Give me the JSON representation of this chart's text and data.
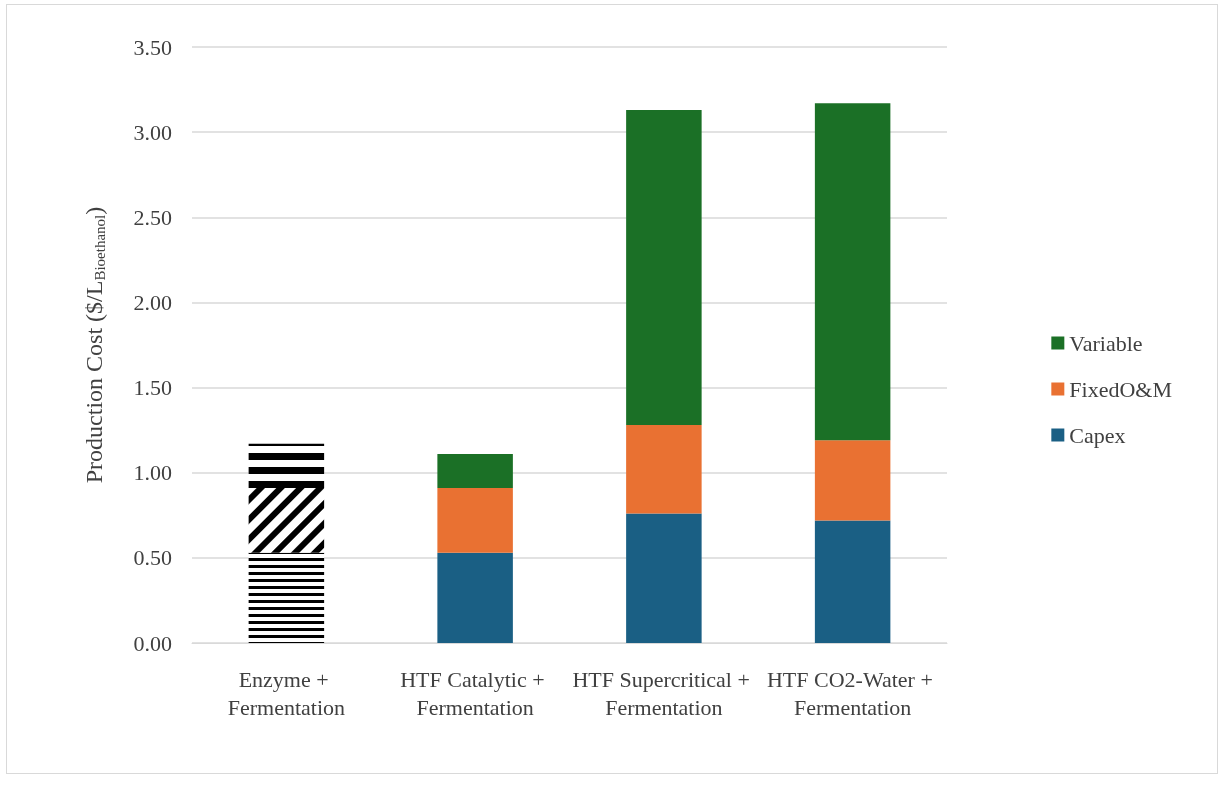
{
  "chart_data": {
    "type": "bar",
    "stacked": true,
    "ylabel": "Production Cost ($/L$_{Bioethanol}$)",
    "categories": [
      "Enzyme + Fermentation",
      "HTF Catalytic + Fermentation",
      "HTF Supercritical + Fermentation",
      "HTF CO2-Water + Fermentation"
    ],
    "series": [
      {
        "name": "Capex",
        "color": "#1a5f84",
        "colors": [
          "#000000",
          "#1a5f84",
          "#1a5f84",
          "#1a5f84"
        ],
        "values": [
          0.53,
          0.53,
          0.76,
          0.72
        ]
      },
      {
        "name": "FixedO&M",
        "color": "#e97132",
        "colors": [
          "#000000",
          "#e97132",
          "#e97132",
          "#e97132"
        ],
        "values": [
          0.38,
          0.38,
          0.52,
          0.47
        ]
      },
      {
        "name": "Variable",
        "color": "#1b7026",
        "colors": [
          "#000000",
          "#1b7026",
          "#1b7026",
          "#1b7026"
        ],
        "values": [
          0.26,
          0.2,
          1.85,
          1.98
        ]
      }
    ],
    "ylim": [
      0,
      3.5
    ],
    "yticks": [
      {
        "value": 0,
        "label": "0.00"
      },
      {
        "value": 0.5,
        "label": "0.50"
      },
      {
        "value": 1,
        "label": "1.00"
      },
      {
        "value": 1.5,
        "label": "1.50"
      },
      {
        "value": 2,
        "label": "2.00"
      },
      {
        "value": 2.5,
        "label": "2.50"
      },
      {
        "value": 3,
        "label": "3.00"
      },
      {
        "value": 3.5,
        "label": "3.50"
      }
    ],
    "grid": "y",
    "legend": "right"
  }
}
